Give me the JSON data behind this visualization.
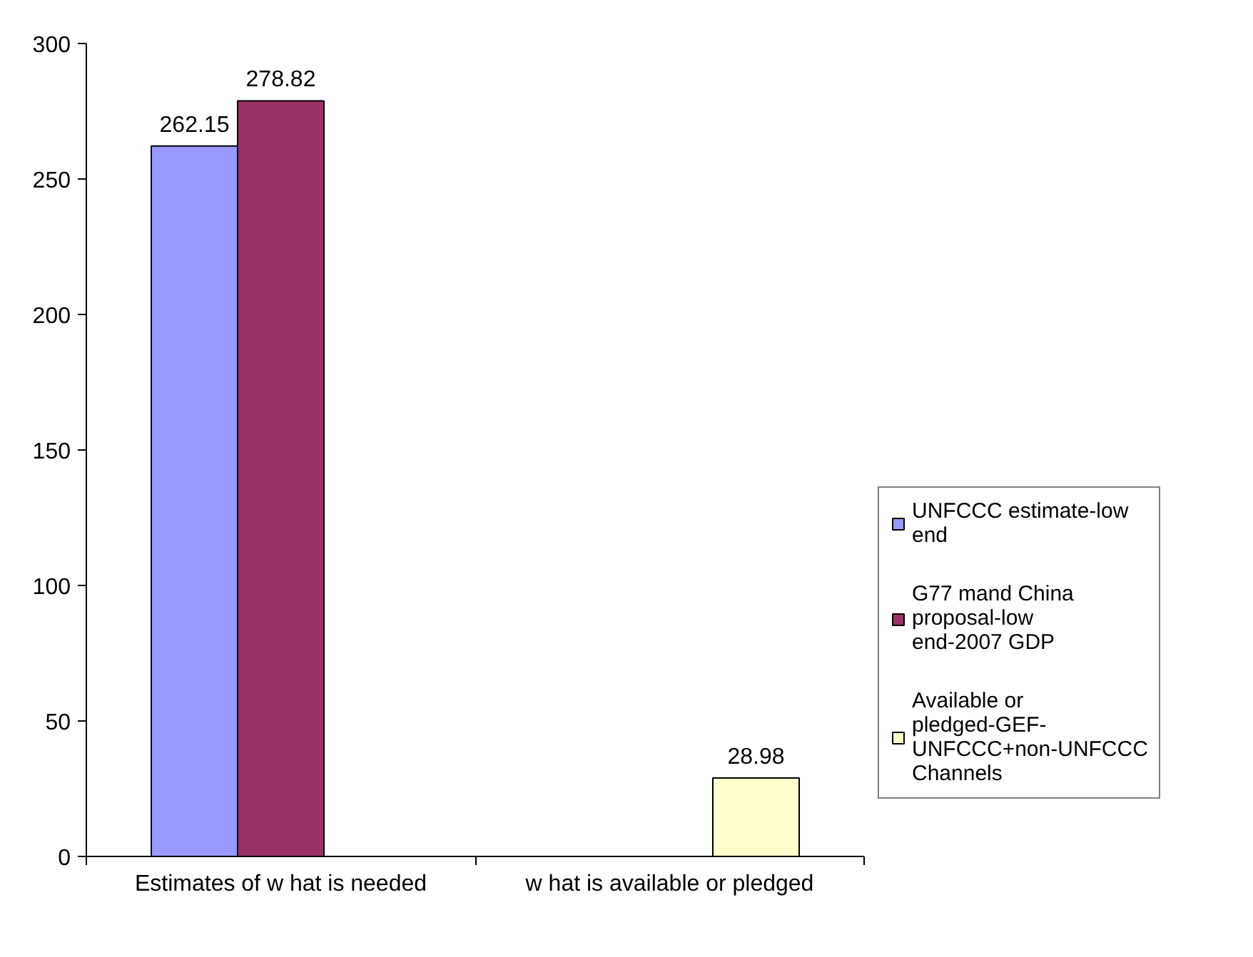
{
  "chart_data": {
    "type": "bar",
    "categories": [
      "Estimates of w hat is needed",
      "w hat is available or pledged"
    ],
    "series": [
      {
        "name": "UNFCCC estimate-low end",
        "color": "#9999ff",
        "values": [
          262.15,
          null
        ]
      },
      {
        "name": "G77 mand China proposal-low end-2007 GDP",
        "color": "#993366",
        "values": [
          278.82,
          null
        ]
      },
      {
        "name": "Available or pledged-GEF-UNFCCC+non-UNFCCC Channels",
        "color": "#ffffcc",
        "values": [
          null,
          28.98
        ]
      }
    ],
    "ylim": [
      0,
      300
    ],
    "yticks": [
      0,
      50,
      100,
      150,
      200,
      250,
      300
    ],
    "grid": false,
    "legend": "right",
    "data_labels": true
  }
}
